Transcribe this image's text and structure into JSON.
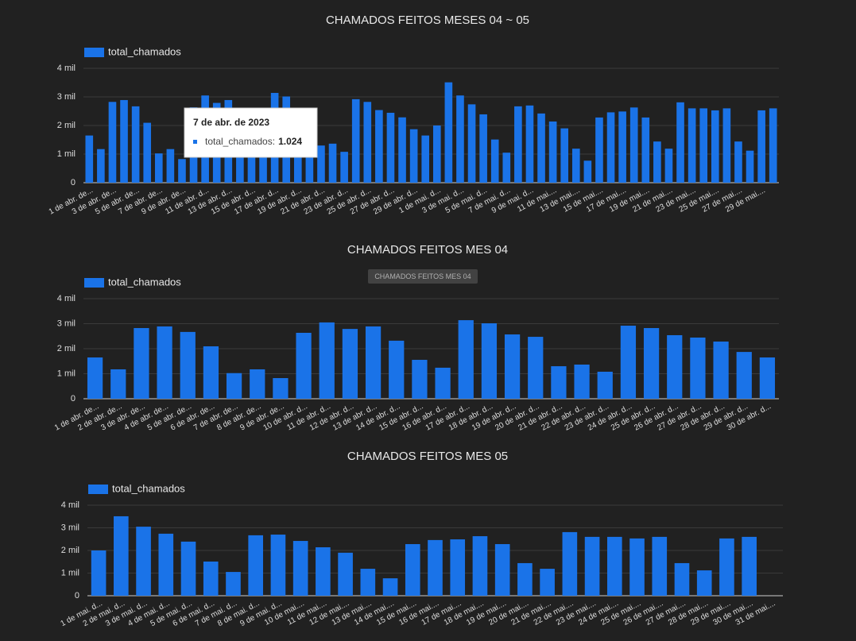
{
  "chart_data": [
    {
      "type": "bar",
      "title": "CHAMADOS FEITOS MESES 04 ~ 05",
      "categories": [
        "1 de abr. de...",
        null,
        "3 de abr. de...",
        null,
        "5 de abr. de...",
        null,
        "7 de abr. de...",
        null,
        "9 de abr. de...",
        null,
        "11 de abr. d...",
        null,
        "13 de abr. d...",
        null,
        "15 de abr. d...",
        null,
        "17 de abr. d...",
        null,
        "19 de abr. d...",
        null,
        "21 de abr. d...",
        null,
        "23 de abr. d...",
        null,
        "25 de abr. d...",
        null,
        "27 de abr. d...",
        null,
        "29 de abr. d...",
        null,
        "1 de mai. d...",
        null,
        "3 de mai. d...",
        null,
        "5 de mai. d...",
        null,
        "7 de mai. d...",
        null,
        "9 de mai. d...",
        null,
        "11 de mai....",
        null,
        "13 de mai....",
        null,
        "15 de mai....",
        null,
        "17 de mai....",
        null,
        "19 de mai....",
        null,
        "21 de mai....",
        null,
        "23 de mai....",
        null,
        "25 de mai....",
        null,
        "27 de mai....",
        null,
        "29 de mai....",
        null
      ],
      "series": [
        {
          "name": "total_chamados",
          "color": "#1a73e8",
          "values": [
            1650,
            1175,
            2825,
            2890,
            2670,
            2095,
            1024,
            1175,
            825,
            2635,
            3050,
            2790,
            2890,
            2320,
            1555,
            1240,
            3140,
            3015,
            2570,
            2475,
            1300,
            1365,
            1080,
            2920,
            2825,
            2540,
            2445,
            2285,
            1870,
            1650,
            2000,
            3510,
            3050,
            2740,
            2390,
            1510,
            1050,
            2670,
            2700,
            2420,
            2140,
            1900,
            1190,
            770,
            2280,
            2460,
            2490,
            2630,
            2280,
            1440,
            1190,
            2810,
            2600,
            2600,
            2530,
            2600,
            1440,
            1120,
            2530,
            2600
          ]
        }
      ],
      "ylim": [
        0,
        4000
      ],
      "yticks": [
        0,
        {
          "value": 1000,
          "label": "1 mil"
        },
        {
          "value": 2000,
          "label": "2 mil"
        },
        {
          "value": 3000,
          "label": "3 mil"
        },
        {
          "value": 4000,
          "label": "4 mil"
        }
      ],
      "grid": true
    },
    {
      "type": "bar",
      "title": "CHAMADOS FEITOS MES 04",
      "categories": [
        "1 de abr. de...",
        "2 de abr. de...",
        "3 de abr. de...",
        "4 de abr. de...",
        "5 de abr. de...",
        "6 de abr. de...",
        "7 de abr. de...",
        "8 de abr. de...",
        "9 de abr. de...",
        "10 de abr. d...",
        "11 de abr. d...",
        "12 de abr. d...",
        "13 de abr. d...",
        "14 de abr. d...",
        "15 de abr. d...",
        "16 de abr. d...",
        "17 de abr. d...",
        "18 de abr. d...",
        "19 de abr. d...",
        "20 de abr. d...",
        "21 de abr. d...",
        "22 de abr. d...",
        "23 de abr. d...",
        "24 de abr. d...",
        "25 de abr. d...",
        "26 de abr. d...",
        "27 de abr. d...",
        "28 de abr. d...",
        "29 de abr. d...",
        "30 de abr. d..."
      ],
      "series": [
        {
          "name": "total_chamados",
          "color": "#1a73e8",
          "values": [
            1650,
            1175,
            2825,
            2890,
            2670,
            2095,
            1024,
            1175,
            825,
            2635,
            3050,
            2790,
            2890,
            2320,
            1555,
            1240,
            3140,
            3015,
            2570,
            2475,
            1300,
            1365,
            1080,
            2920,
            2825,
            2540,
            2445,
            2285,
            1870,
            1650
          ]
        }
      ],
      "ylim": [
        0,
        4000
      ],
      "yticks": [
        0,
        {
          "value": 1000,
          "label": "1 mil"
        },
        {
          "value": 2000,
          "label": "2 mil"
        },
        {
          "value": 3000,
          "label": "3 mil"
        },
        {
          "value": 4000,
          "label": "4 mil"
        }
      ],
      "grid": true
    },
    {
      "type": "bar",
      "title": "CHAMADOS FEITOS MES 05",
      "categories": [
        "1 de mai. d...",
        "2 de mai. d...",
        "3 de mai. d...",
        "4 de mai. d...",
        "5 de mai. d...",
        "6 de mai. d...",
        "7 de mai. d...",
        "8 de mai. d...",
        "9 de mai. d...",
        "10 de mai....",
        "11 de mai....",
        "12 de mai....",
        "13 de mai....",
        "14 de mai....",
        "15 de mai....",
        "16 de mai....",
        "17 de mai....",
        "18 de mai....",
        "19 de mai....",
        "20 de mai....",
        "21 de mai....",
        "22 de mai....",
        "23 de mai....",
        "24 de mai....",
        "25 de mai....",
        "26 de mai....",
        "27 de mai....",
        "28 de mai....",
        "29 de mai....",
        "30 de mai....",
        "31 de mai...."
      ],
      "series": [
        {
          "name": "total_chamados",
          "color": "#1a73e8",
          "values": [
            2000,
            3510,
            3050,
            2740,
            2390,
            1510,
            1050,
            2670,
            2700,
            2420,
            2140,
            1900,
            1190,
            770,
            2280,
            2460,
            2490,
            2630,
            2280,
            1440,
            1190,
            2810,
            2600,
            2600,
            2530,
            2600,
            1440,
            1120,
            2530,
            2600,
            null
          ]
        }
      ],
      "ylim": [
        0,
        4000
      ],
      "yticks": [
        0,
        {
          "value": 1000,
          "label": "1 mil"
        },
        {
          "value": 2000,
          "label": "2 mil"
        },
        {
          "value": 3000,
          "label": "3 mil"
        },
        {
          "value": 4000,
          "label": "4 mil"
        }
      ],
      "grid": true
    }
  ],
  "tooltip": {
    "title": "7 de abr. de 2023",
    "series_label": "total_chamados:",
    "value_label": "1.024"
  },
  "hover_label": "CHAMADOS FEITOS MES 04"
}
